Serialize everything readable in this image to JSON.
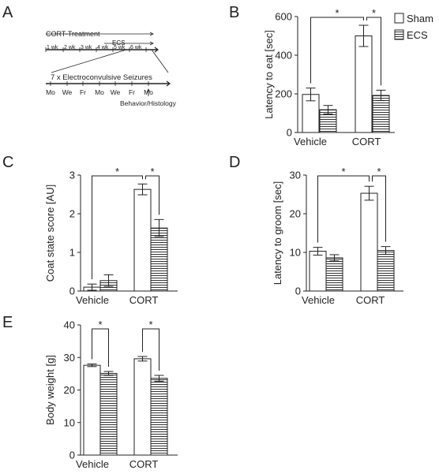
{
  "panel_labels": [
    "A",
    "B",
    "C",
    "D",
    "E"
  ],
  "legend": {
    "sham": "Sham",
    "ecs": "ECS"
  },
  "panel_a": {
    "cort_treatment": "CORT-Treatment",
    "ecs": "ECS",
    "weeks": [
      "1 wk",
      "2 wk",
      "3 wk",
      "4 wk",
      "5 wk",
      "6 wk"
    ],
    "seizures": "7 x Electroconvulsive Seizures",
    "days": [
      "Mo",
      "We",
      "Fr",
      "Mo",
      "We",
      "Fr",
      "Mo"
    ],
    "behavior": "Behavior/Histology"
  },
  "chart_data": [
    {
      "panel": "B",
      "type": "bar",
      "categories": [
        "Vehicle",
        "CORT"
      ],
      "ylabel": "Latency to eat [sec]",
      "ylim": [
        0,
        600
      ],
      "yticks": [
        0,
        200,
        400,
        600
      ],
      "series": [
        {
          "name": "Sham",
          "values": [
            197,
            500
          ],
          "errors": [
            33,
            55
          ]
        },
        {
          "name": "ECS",
          "values": [
            118,
            192
          ],
          "errors": [
            22,
            27
          ]
        }
      ],
      "significance": [
        {
          "from": "Vehicle Sham",
          "to": "CORT Sham",
          "label": "*"
        },
        {
          "from": "CORT Sham",
          "to": "CORT ECS",
          "label": "*"
        }
      ]
    },
    {
      "panel": "C",
      "type": "bar",
      "categories": [
        "Vehicle",
        "CORT"
      ],
      "ylabel": "Coat state score [AU]",
      "ylim": [
        0,
        3
      ],
      "yticks": [
        0,
        1,
        2,
        3
      ],
      "series": [
        {
          "name": "Sham",
          "values": [
            0.1,
            2.63
          ],
          "errors": [
            0.08,
            0.14
          ]
        },
        {
          "name": "ECS",
          "values": [
            0.27,
            1.63
          ],
          "errors": [
            0.15,
            0.22
          ]
        }
      ],
      "significance": [
        {
          "from": "Vehicle Sham",
          "to": "CORT Sham",
          "label": "*"
        },
        {
          "from": "CORT Sham",
          "to": "CORT ECS",
          "label": "*"
        }
      ]
    },
    {
      "panel": "D",
      "type": "bar",
      "categories": [
        "Vehicle",
        "CORT"
      ],
      "ylabel": "Latency to groom [sec]",
      "ylim": [
        0,
        30
      ],
      "yticks": [
        0,
        10,
        20,
        30
      ],
      "series": [
        {
          "name": "Sham",
          "values": [
            10.3,
            25.3
          ],
          "errors": [
            1.0,
            1.8
          ]
        },
        {
          "name": "ECS",
          "values": [
            8.6,
            10.5
          ],
          "errors": [
            0.8,
            1.0
          ]
        }
      ],
      "significance": [
        {
          "from": "Vehicle Sham",
          "to": "CORT Sham",
          "label": "*"
        },
        {
          "from": "CORT Sham",
          "to": "CORT ECS",
          "label": "*"
        }
      ]
    },
    {
      "panel": "E",
      "type": "bar",
      "categories": [
        "Vehicle",
        "CORT"
      ],
      "ylabel": "Body weight [g]",
      "ylim": [
        0,
        40
      ],
      "yticks": [
        0,
        10,
        20,
        30,
        40
      ],
      "series": [
        {
          "name": "Sham",
          "values": [
            27.6,
            29.6
          ],
          "errors": [
            0.4,
            0.7
          ]
        },
        {
          "name": "ECS",
          "values": [
            25.1,
            23.6
          ],
          "errors": [
            0.6,
            0.9
          ]
        }
      ],
      "significance": [
        {
          "from": "Vehicle Sham",
          "to": "Vehicle ECS",
          "label": "*"
        },
        {
          "from": "CORT Sham",
          "to": "CORT ECS",
          "label": "*"
        }
      ]
    }
  ]
}
